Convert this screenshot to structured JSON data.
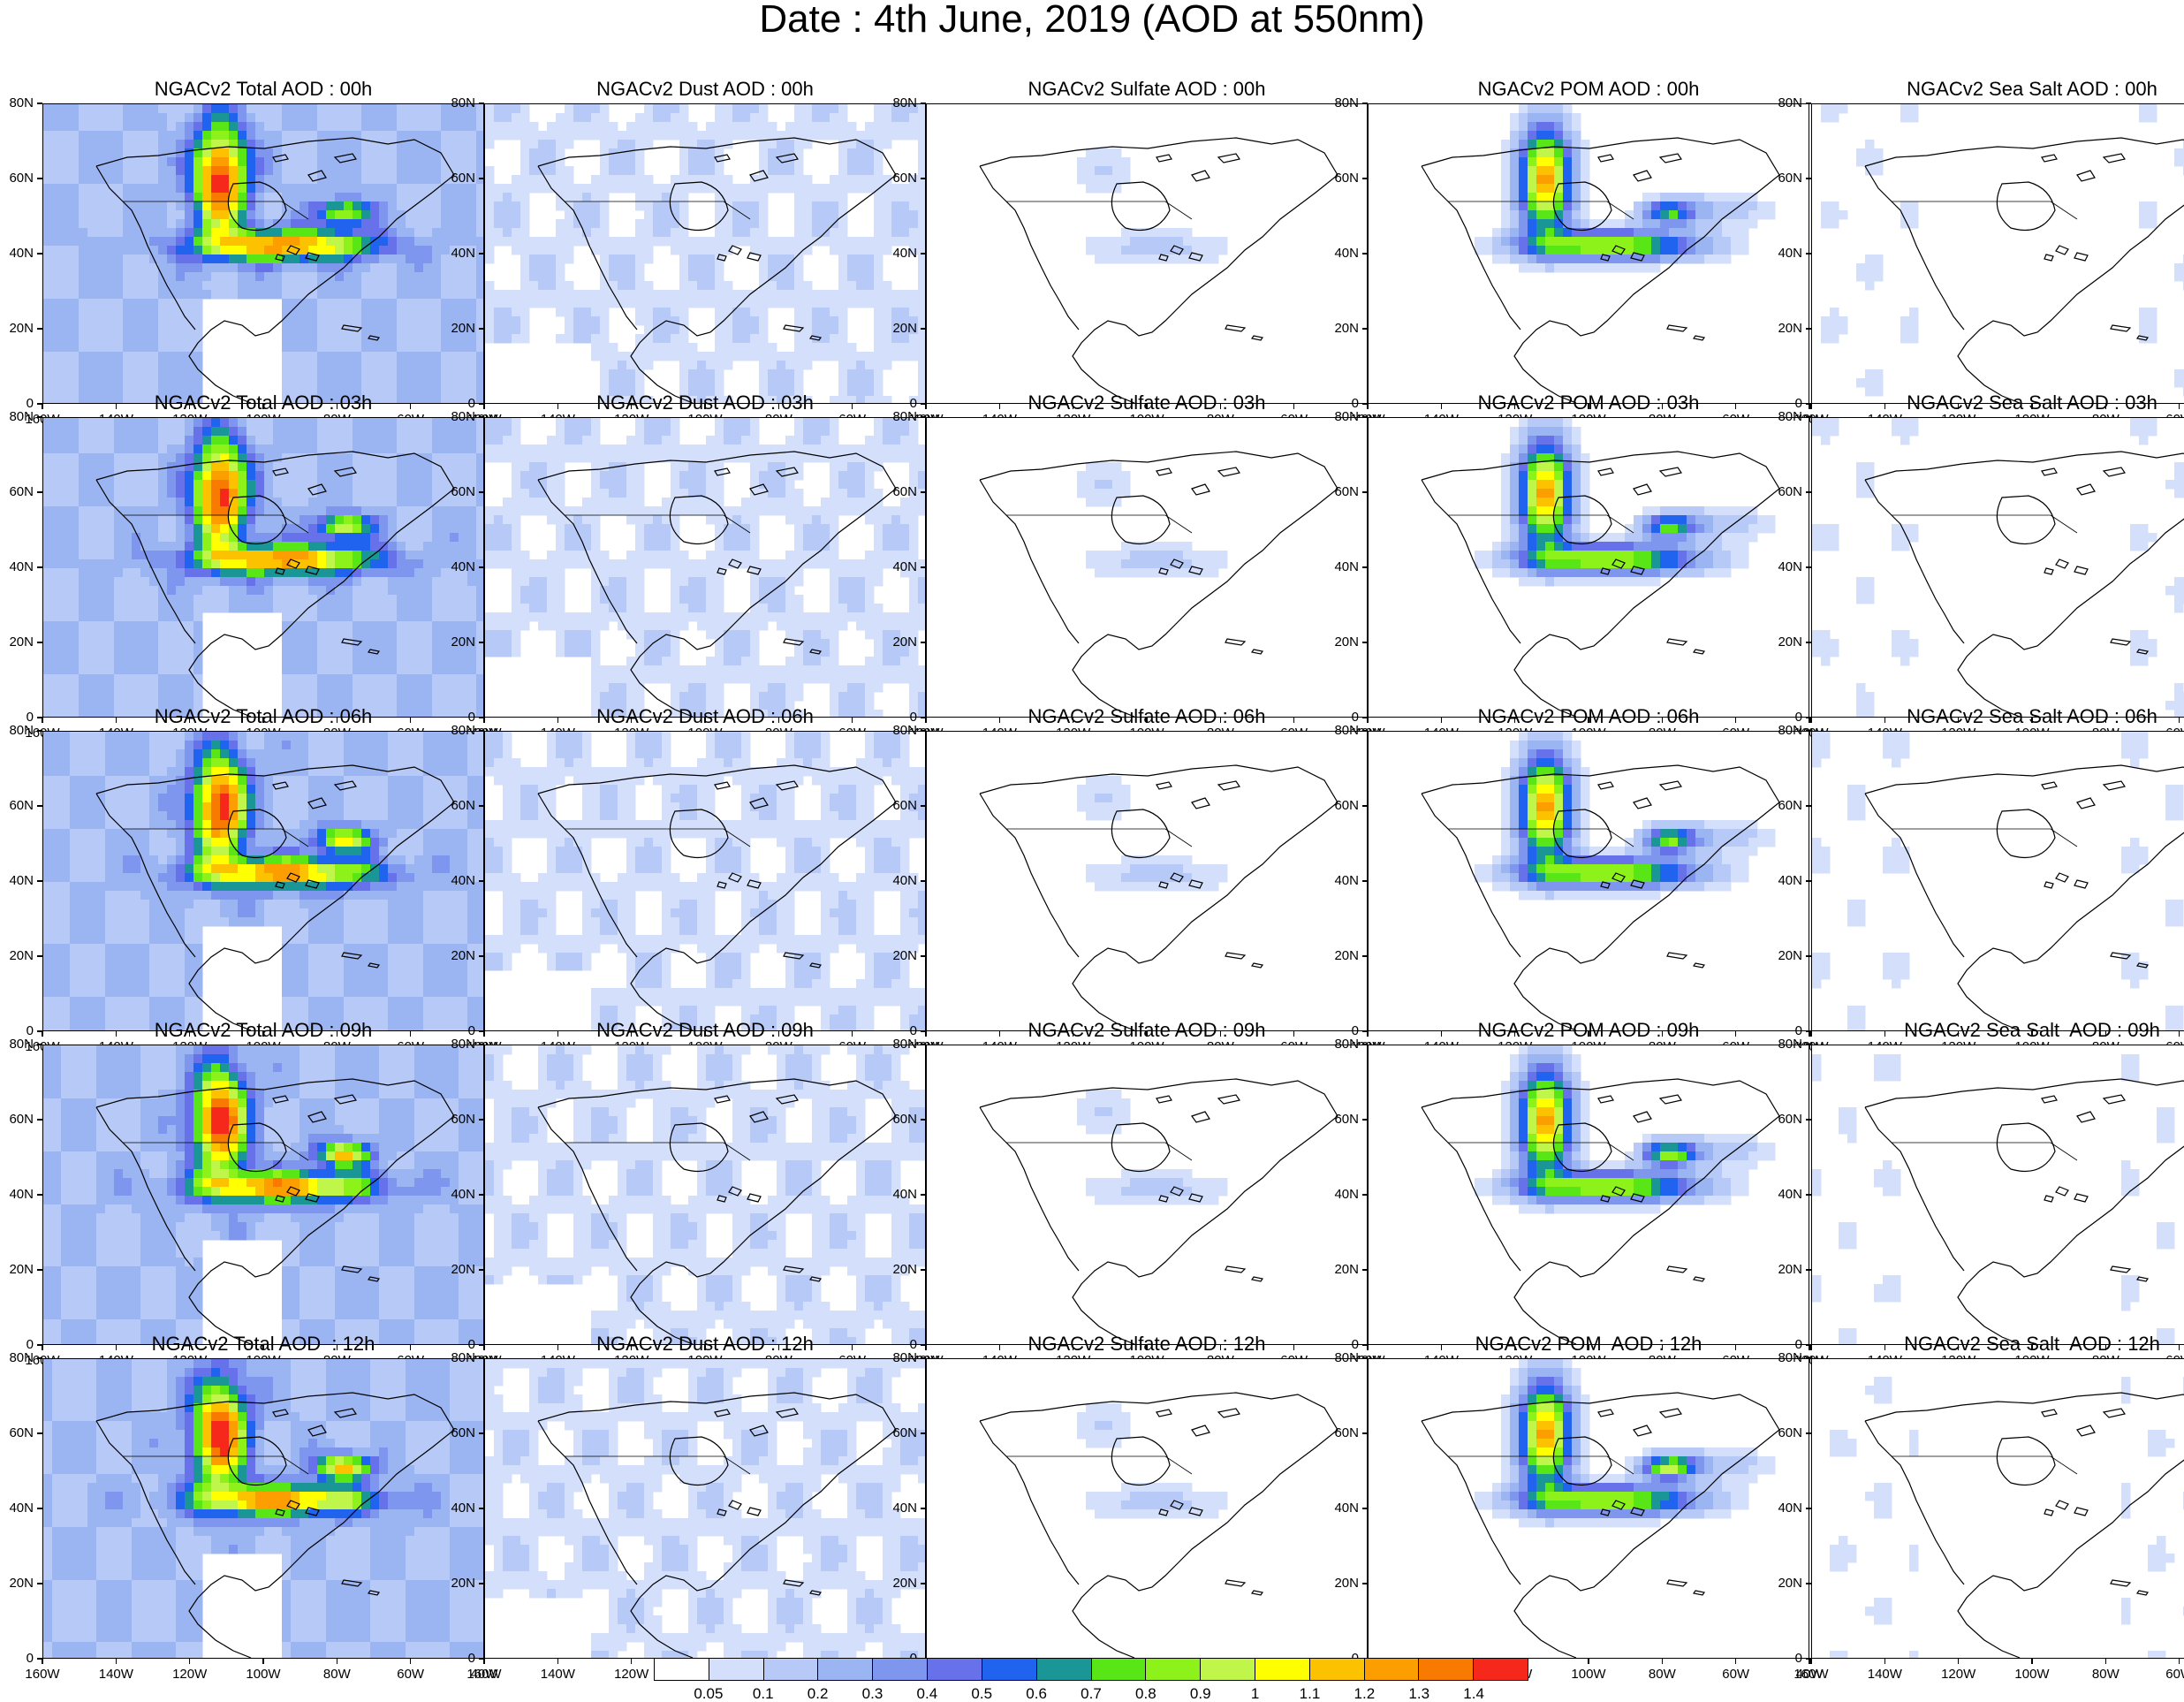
{
  "title": "Date : 4th June, 2019 (AOD at 550nm)",
  "lat_labels": [
    "80N",
    "60N",
    "40N",
    "20N",
    "0"
  ],
  "lon_labels": [
    "160W",
    "140W",
    "120W",
    "100W",
    "80W",
    "60W",
    "40W"
  ],
  "panels": [
    [
      "NGACv2 Total AOD : 00h",
      "NGACv2 Dust AOD : 00h",
      "NGACv2 Sulfate AOD : 00h",
      "NGACv2 POM AOD : 00h",
      "NGACv2 Sea Salt AOD : 00h"
    ],
    [
      "NGACv2 Total AOD : 03h",
      "NGACv2 Dust AOD : 03h",
      "NGACv2 Sulfate AOD : 03h",
      "NGACv2 POM AOD : 03h",
      "NGACv2 Sea Salt AOD : 03h"
    ],
    [
      "NGACv2 Total AOD : 06h",
      "NGACv2 Dust AOD : 06h",
      "NGACv2 Sulfate AOD : 06h",
      "NGACv2 POM AOD : 06h",
      "NGACv2 Sea Salt AOD : 06h"
    ],
    [
      "NGACv2 Total AOD : 09h",
      "NGACv2 Dust AOD : 09h",
      "NGACv2 Sulfate AOD : 09h",
      "NGACv2 POM AOD : 09h",
      "NGACv2 Sea Salt  AOD : 09h"
    ],
    [
      "NGACv2 Total AOD  : 12h",
      "NGACv2 Dust AOD : 12h",
      "NGACv2 Sulfate AOD : 12h",
      "NGACv2 POM  AOD : 12h",
      "NGACv2 Sea Salt  AOD : 12h"
    ]
  ],
  "colorbar": {
    "labels": [
      "0.05",
      "0.1",
      "0.2",
      "0.3",
      "0.4",
      "0.5",
      "0.6",
      "0.7",
      "0.8",
      "0.9",
      "1",
      "1.1",
      "1.2",
      "1.3",
      "1.4"
    ],
    "colors": [
      "#ffffff",
      "#d4e0fb",
      "#b7c9f7",
      "#9bb4f2",
      "#7f96ee",
      "#6671ea",
      "#1f63ef",
      "#1a9696",
      "#58e617",
      "#8cf21a",
      "#c0f54a",
      "#ffff00",
      "#fcc200",
      "#fc9d00",
      "#f97a00",
      "#f6271b"
    ]
  }
}
